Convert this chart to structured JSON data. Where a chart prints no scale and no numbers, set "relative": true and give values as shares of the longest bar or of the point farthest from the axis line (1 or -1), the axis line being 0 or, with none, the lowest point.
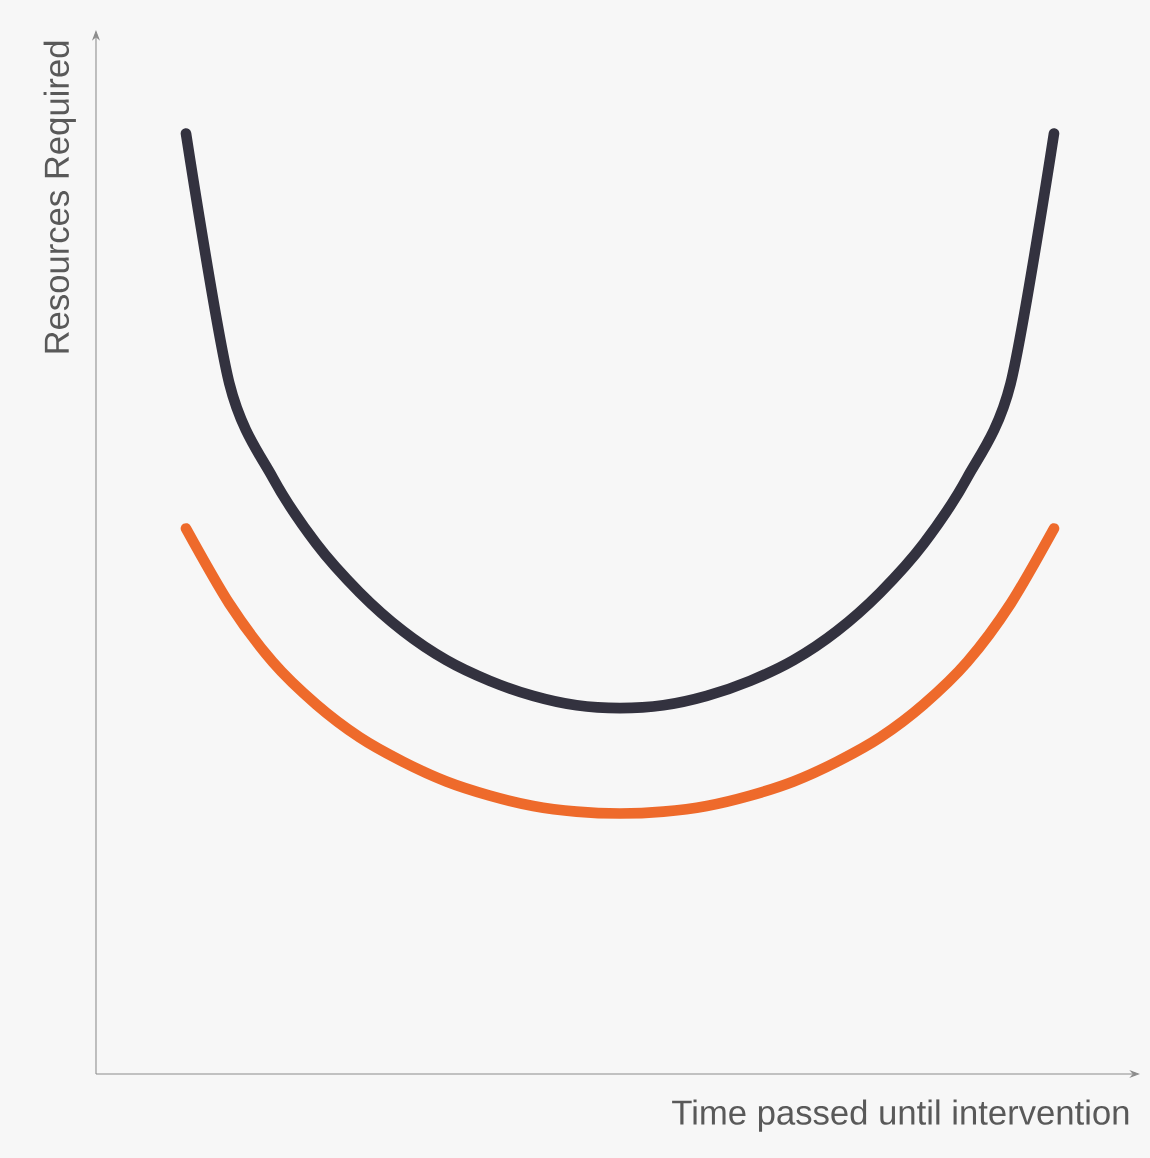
{
  "chart_data": {
    "type": "line",
    "relative": true,
    "xlabel": "Time passed until intervention",
    "ylabel": "Resources Required",
    "categories": [
      null,
      null,
      null,
      null,
      null,
      null,
      null,
      null,
      null,
      null,
      null,
      null,
      null,
      null,
      null,
      null,
      null,
      null,
      null,
      null,
      null
    ],
    "series": [
      {
        "color": "#33323f",
        "values": [
          1.0,
          0.734,
          0.634,
          0.564,
          0.512,
          0.471,
          0.44,
          0.418,
          0.402,
          0.392,
          0.389,
          0.392,
          0.402,
          0.418,
          0.44,
          0.471,
          0.512,
          0.564,
          0.634,
          0.734,
          1.0
        ]
      },
      {
        "color": "#ee6a2b",
        "values": [
          0.58,
          0.5,
          0.438,
          0.393,
          0.358,
          0.332,
          0.311,
          0.296,
          0.285,
          0.279,
          0.277,
          0.279,
          0.285,
          0.296,
          0.311,
          0.332,
          0.358,
          0.393,
          0.438,
          0.5,
          0.58
        ]
      }
    ]
  }
}
